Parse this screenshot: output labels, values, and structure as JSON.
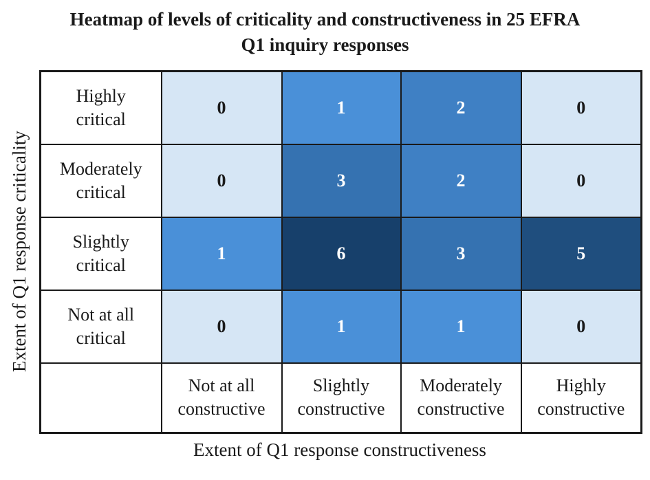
{
  "chart_data": {
    "type": "heatmap",
    "title": "Heatmap of levels of criticality and constructiveness in 25 EFRA\nQ1 inquiry responses",
    "xlabel": "Extent of Q1 response constructiveness",
    "ylabel": "Extent of Q1 response criticality",
    "x_categories": [
      "Not at all\nconstructive",
      "Slightly\nconstructive",
      "Moderately\nconstructive",
      "Highly\nconstructive"
    ],
    "y_categories": [
      "Highly\ncritical",
      "Moderately\ncritical",
      "Slightly\ncritical",
      "Not at all\ncritical"
    ],
    "values": [
      [
        0,
        1,
        2,
        0
      ],
      [
        0,
        3,
        2,
        0
      ],
      [
        1,
        6,
        3,
        5
      ],
      [
        0,
        1,
        1,
        0
      ]
    ],
    "total_responses": 25,
    "color_scale": {
      "0": "#d6e6f5",
      "1": "#4a90d8",
      "2": "#3f80c4",
      "3": "#3572b1",
      "5": "#1f4e7e",
      "6": "#17406b"
    },
    "zero_text_color": "#1a1a1a",
    "value_text_color": "#ffffff",
    "grid_border_color": "#1a1a1a",
    "legend": "none"
  }
}
